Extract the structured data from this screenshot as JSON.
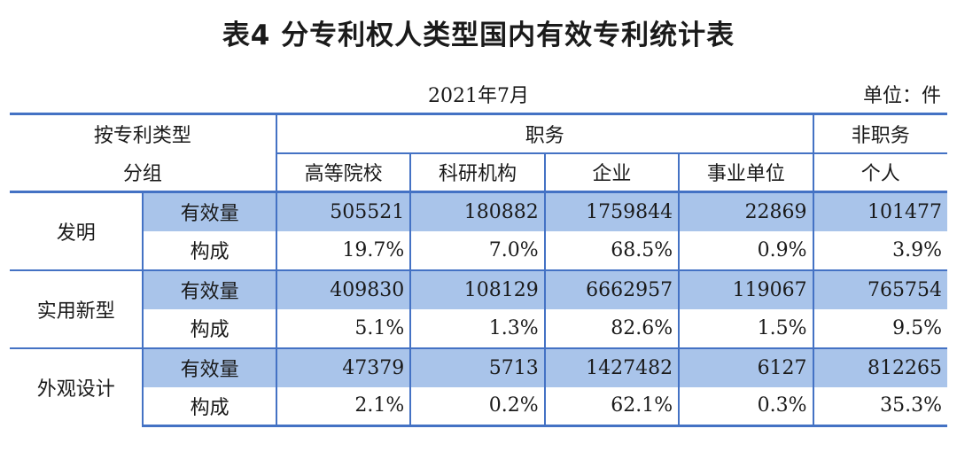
{
  "title": "表4 分专利权人类型国内有效专利统计表",
  "date": "2021年7月",
  "unit": "单位：件",
  "header": {
    "group_label_line1": "按专利类型",
    "group_label_line2": "分组",
    "service_label": "职务",
    "non_service_label": "非职务",
    "columns": [
      "高等院校",
      "科研机构",
      "企业",
      "事业单位",
      "个人"
    ]
  },
  "groups": [
    {
      "name": "发明",
      "rows": [
        {
          "label": "有效量",
          "values": [
            "505521",
            "180882",
            "1759844",
            "22869",
            "101477"
          ]
        },
        {
          "label": "构成",
          "values": [
            "19.7%",
            "7.0%",
            "68.5%",
            "0.9%",
            "3.9%"
          ]
        }
      ]
    },
    {
      "name": "实用新型",
      "rows": [
        {
          "label": "有效量",
          "values": [
            "409830",
            "108129",
            "6662957",
            "119067",
            "765754"
          ]
        },
        {
          "label": "构成",
          "values": [
            "5.1%",
            "1.3%",
            "82.6%",
            "1.5%",
            "9.5%"
          ]
        }
      ]
    },
    {
      "name": "外观设计",
      "rows": [
        {
          "label": "有效量",
          "values": [
            "47379",
            "5713",
            "1427482",
            "6127",
            "812265"
          ]
        },
        {
          "label": "构成",
          "values": [
            "2.1%",
            "0.2%",
            "62.1%",
            "0.3%",
            "35.3%"
          ]
        }
      ]
    }
  ],
  "colors": {
    "rule": "#4472c4",
    "shade": "#a9c4ea"
  }
}
